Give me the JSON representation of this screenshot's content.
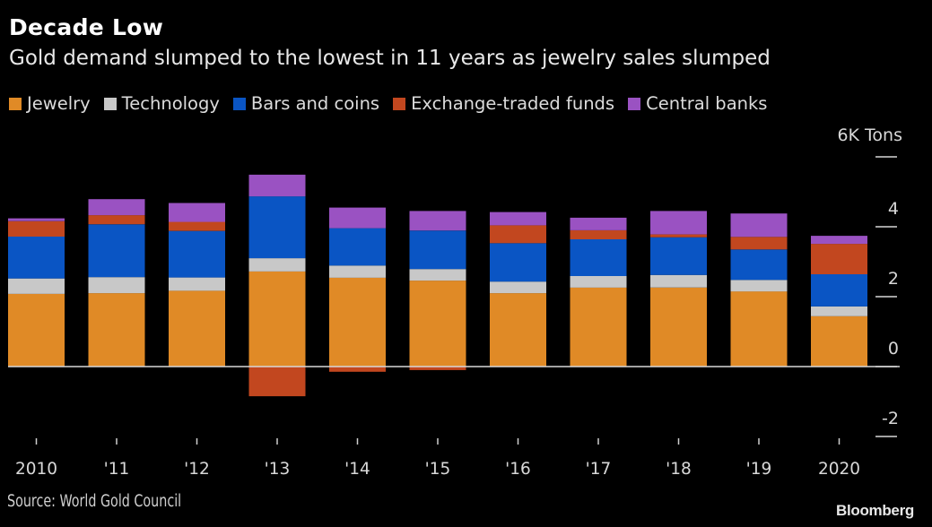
{
  "header": {
    "title": "Decade Low",
    "subtitle": "Gold demand slumped to the lowest in 11 years as jewelry sales slumped"
  },
  "legend": [
    {
      "label": "Jewelry",
      "color": "#e08a26"
    },
    {
      "label": "Technology",
      "color": "#c8c8c8"
    },
    {
      "label": "Bars and coins",
      "color": "#0a55c4"
    },
    {
      "label": "Exchange-traded funds",
      "color": "#c2471f"
    },
    {
      "label": "Central banks",
      "color": "#9a52c2"
    }
  ],
  "footer": {
    "source": "Source: World Gold Council",
    "brand": "Bloomberg"
  },
  "chart_data": {
    "type": "bar",
    "stacked": true,
    "title": "Decade Low",
    "subtitle": "Gold demand slumped to the lowest in 11 years as jewelry sales slumped",
    "xlabel": "",
    "ylabel": "6K Tons",
    "unit_label": "6K Tons",
    "ylim": [
      -2,
      6
    ],
    "yticks": [
      -2,
      0,
      2,
      4,
      6
    ],
    "ytick_labels": [
      "-2",
      "0",
      "2",
      "4",
      "6K Tons"
    ],
    "grid": false,
    "legend_position": "top-left",
    "categories": [
      "2010",
      "'11",
      "'12",
      "'13",
      "'14",
      "'15",
      "'16",
      "'17",
      "'18",
      "'19",
      "2020"
    ],
    "series": [
      {
        "name": "Jewelry",
        "color": "#e08a26",
        "values": [
          2.08,
          2.1,
          2.17,
          2.72,
          2.54,
          2.46,
          2.1,
          2.26,
          2.26,
          2.15,
          1.44
        ]
      },
      {
        "name": "Technology",
        "color": "#c8c8c8",
        "values": [
          0.44,
          0.46,
          0.38,
          0.38,
          0.35,
          0.33,
          0.33,
          0.33,
          0.36,
          0.33,
          0.28
        ]
      },
      {
        "name": "Bars and coins",
        "color": "#0a55c4",
        "values": [
          1.2,
          1.51,
          1.33,
          1.77,
          1.07,
          1.1,
          1.1,
          1.05,
          1.08,
          0.87,
          0.92
        ]
      },
      {
        "name": "Exchange-traded funds",
        "color": "#c2471f",
        "values": [
          0.44,
          0.26,
          0.26,
          -0.85,
          -0.15,
          -0.1,
          0.51,
          0.26,
          0.08,
          0.36,
          0.87
        ]
      },
      {
        "name": "Central banks",
        "color": "#9a52c2",
        "values": [
          0.08,
          0.46,
          0.54,
          0.62,
          0.59,
          0.56,
          0.38,
          0.36,
          0.67,
          0.67,
          0.23
        ]
      }
    ]
  }
}
